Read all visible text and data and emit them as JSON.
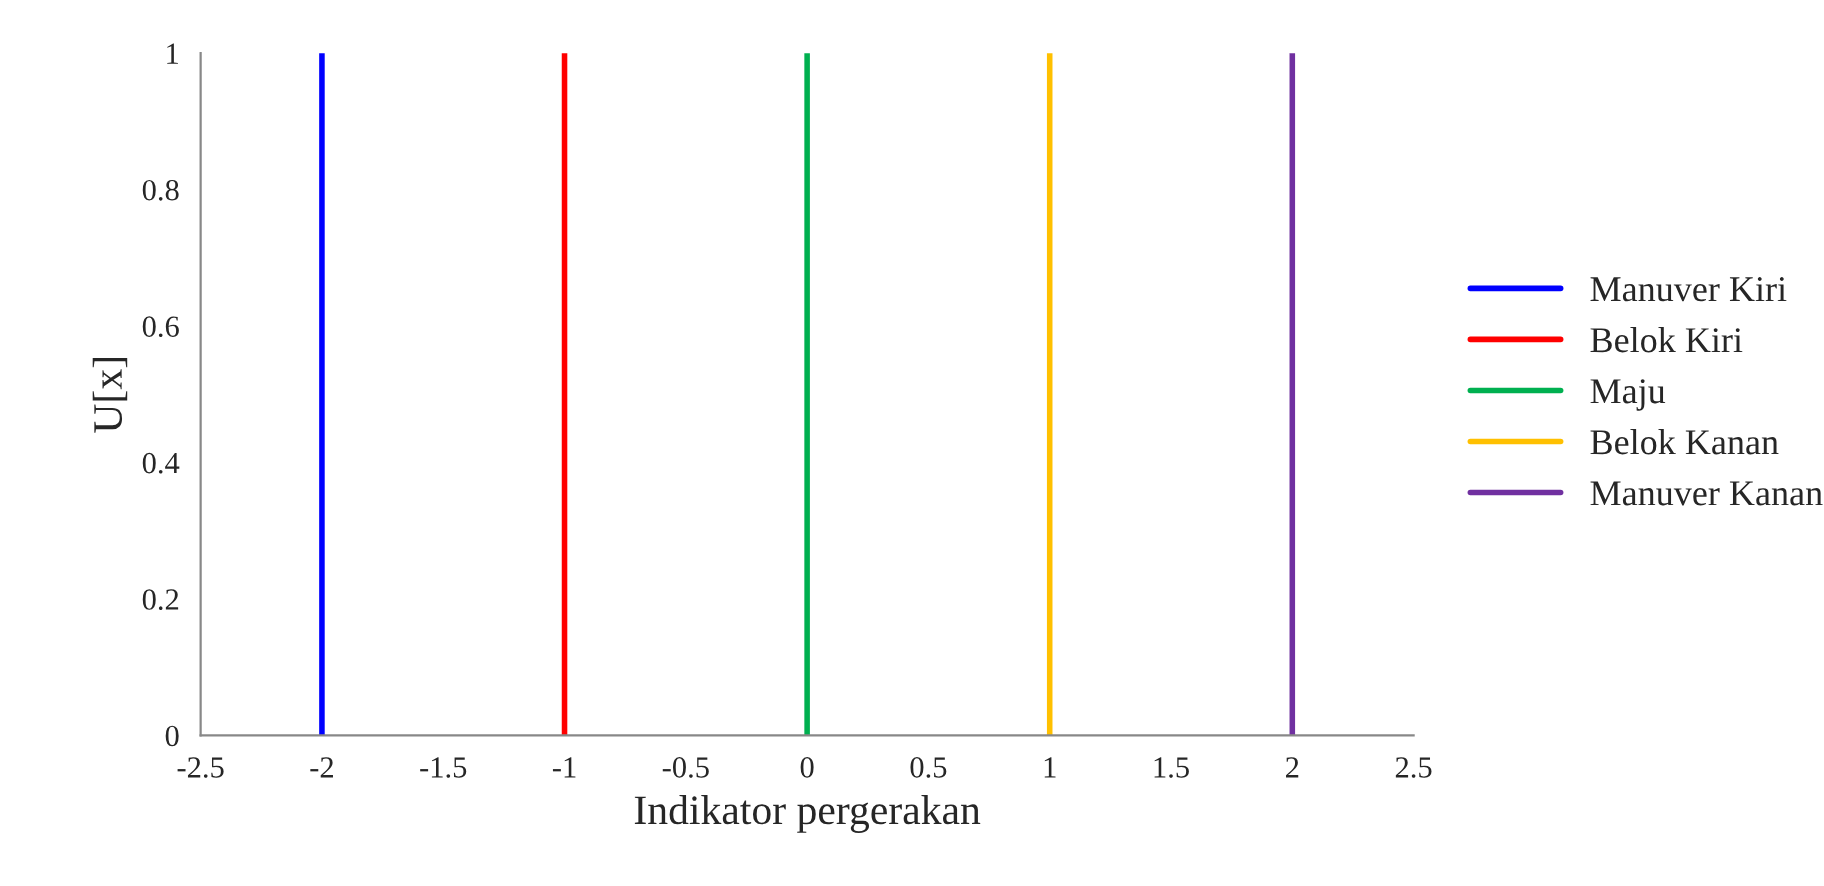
{
  "chart_data": {
    "type": "line",
    "xlabel": "Indikator pergerakan",
    "ylabel": "U[x]",
    "series": [
      {
        "name": "Manuver Kiri",
        "color": "#0000ff",
        "x": [
          -2,
          -2
        ],
        "values": [
          0,
          1
        ]
      },
      {
        "name": "Belok Kiri",
        "color": "#ff0000",
        "x": [
          -1,
          -1
        ],
        "values": [
          0,
          1
        ]
      },
      {
        "name": "Maju",
        "color": "#00b050",
        "x": [
          0,
          0
        ],
        "values": [
          0,
          1
        ]
      },
      {
        "name": "Belok Kanan",
        "color": "#ffc000",
        "x": [
          1,
          1
        ],
        "values": [
          0,
          1
        ]
      },
      {
        "name": "Manuver Kanan",
        "color": "#7030a0",
        "x": [
          2,
          2
        ],
        "values": [
          0,
          1
        ]
      }
    ],
    "xlim": [
      -2.5,
      2.5
    ],
    "xticks": [
      -2.5,
      -2,
      -1.5,
      -1,
      -0.5,
      0,
      0.5,
      1,
      1.5,
      2,
      2.5
    ],
    "ylim": [
      0,
      1
    ],
    "yticks": [
      0,
      0.2,
      0.4,
      0.6,
      0.8,
      1
    ],
    "legend": "right",
    "grid": false
  }
}
